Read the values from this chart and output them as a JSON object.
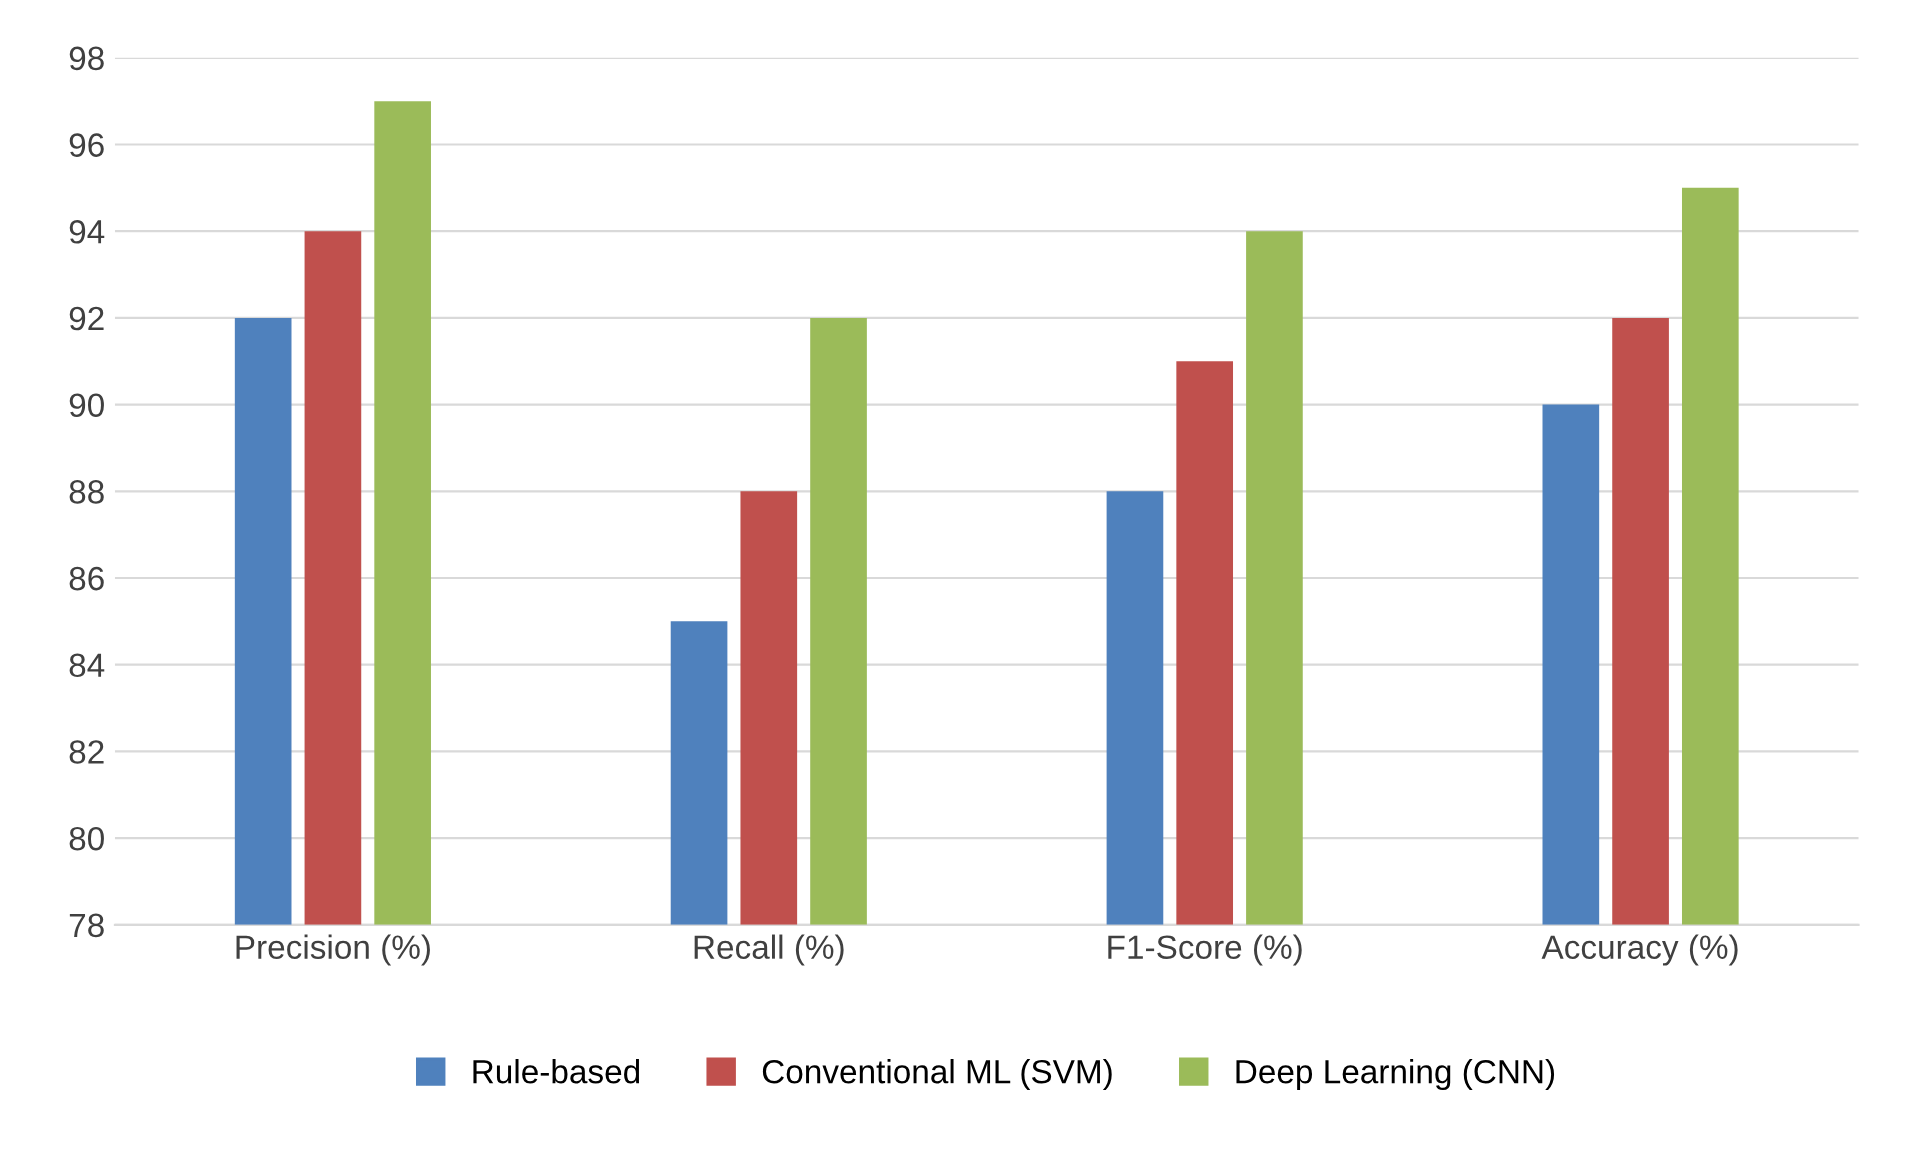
{
  "chart_data": {
    "type": "bar",
    "categories": [
      "Precision (%)",
      "Recall (%)",
      "F1-Score (%)",
      "Accuracy (%)"
    ],
    "series": [
      {
        "name": "Rule-based",
        "color": "#4f81bd",
        "values": [
          92,
          85,
          88,
          90
        ]
      },
      {
        "name": "Conventional ML (SVM)",
        "color": "#c0504d",
        "values": [
          94,
          88,
          91,
          92
        ]
      },
      {
        "name": "Deep Learning (CNN)",
        "color": "#9bbb59",
        "values": [
          97,
          92,
          94,
          95
        ]
      }
    ],
    "ylim": [
      78,
      98
    ],
    "yticks": [
      78,
      80,
      82,
      84,
      86,
      88,
      90,
      92,
      94,
      96,
      98
    ],
    "grid": "y",
    "legend": "bottom"
  }
}
